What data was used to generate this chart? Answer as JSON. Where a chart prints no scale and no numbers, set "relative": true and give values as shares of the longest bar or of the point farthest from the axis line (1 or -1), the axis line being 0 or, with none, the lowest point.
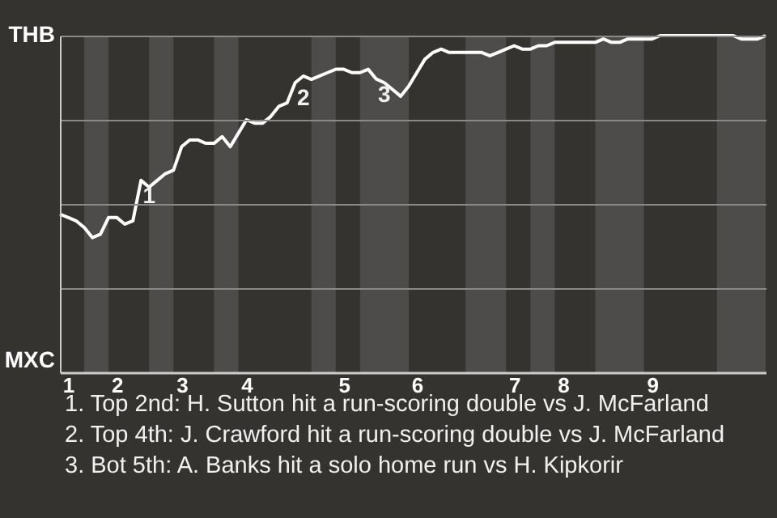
{
  "chart_data": {
    "type": "line",
    "relative": true,
    "categories": [
      null,
      "1",
      null,
      null,
      null,
      null,
      null,
      "2",
      null,
      null,
      null,
      null,
      null,
      null,
      null,
      "3",
      null,
      null,
      null,
      null,
      null,
      null,
      null,
      "4",
      null,
      null,
      null,
      null,
      null,
      null,
      null,
      null,
      null,
      null,
      null,
      "5",
      null,
      null,
      null,
      null,
      null,
      null,
      null,
      null,
      "6",
      null,
      null,
      null,
      null,
      null,
      null,
      null,
      null,
      null,
      null,
      null,
      "7",
      null,
      null,
      null,
      null,
      null,
      "8",
      null,
      null,
      null,
      null,
      null,
      null,
      null,
      null,
      null,
      null,
      "9",
      null,
      null,
      null,
      null,
      null,
      null,
      null,
      null,
      null,
      null,
      null,
      null,
      null,
      null
    ],
    "series": [
      {
        "color": "#ffffff",
        "values": [
          0.47,
          0.46,
          0.45,
          0.43,
          0.4,
          0.41,
          0.46,
          0.46,
          0.44,
          0.45,
          0.57,
          0.55,
          0.57,
          0.59,
          0.6,
          0.67,
          0.69,
          0.69,
          0.68,
          0.68,
          0.7,
          0.67,
          0.71,
          0.75,
          0.74,
          0.74,
          0.76,
          0.79,
          0.8,
          0.86,
          0.88,
          0.87,
          0.88,
          0.89,
          0.9,
          0.9,
          0.89,
          0.89,
          0.9,
          0.871,
          0.86,
          0.84,
          0.82,
          0.85,
          0.89,
          0.93,
          0.95,
          0.96,
          0.95,
          0.95,
          0.95,
          0.95,
          0.95,
          0.94,
          0.95,
          0.96,
          0.97,
          0.96,
          0.96,
          0.97,
          0.97,
          0.98,
          0.98,
          0.98,
          0.98,
          0.98,
          0.98,
          0.99,
          0.98,
          0.98,
          0.99,
          0.99,
          0.99,
          0.99,
          1,
          1,
          1,
          1,
          1,
          1,
          1,
          1,
          1,
          1,
          0.99,
          0.99,
          0.99,
          1
        ]
      }
    ],
    "grid": "y",
    "annotations": [
      "THB",
      "MXC",
      {
        "text": "1",
        "y": 0.57
      },
      {
        "text": "2",
        "y": 0.86
      },
      {
        "text": "3",
        "y": 0.871
      },
      "1. Top 2nd: H. Sutton hit a run-scoring double vs J. McFarland",
      "2. Top 4th: J. Crawford hit a run-scoring double vs J. McFarland",
      "3. Bot 5th: A. Banks hit a solo home run vs H. Kipkorir"
    ]
  }
}
